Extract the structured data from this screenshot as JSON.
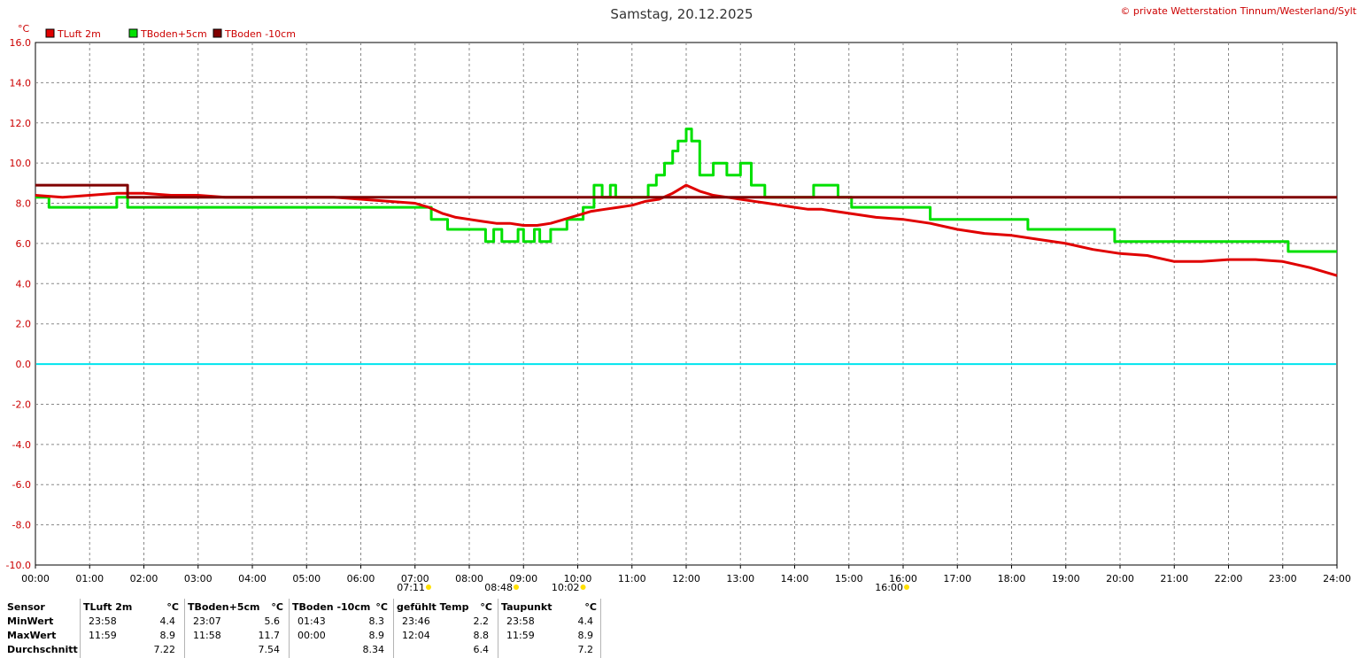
{
  "title": "Samstag, 20.12.2025",
  "copyright": "© private Wetterstation Tinnum/Westerland/Sylt",
  "chart_data": {
    "type": "line",
    "unit_label": "°C",
    "ylim": [
      -10,
      16
    ],
    "yticks": [
      "16.0",
      "14.0",
      "12.0",
      "10.0",
      "8.0",
      "6.0",
      "4.0",
      "2.0",
      "0.0",
      "-2.0",
      "-4.0",
      "-6.0",
      "-8.0",
      "-10.0"
    ],
    "xlim": [
      0,
      24
    ],
    "xticks": [
      "00:00",
      "01:00",
      "02:00",
      "03:00",
      "04:00",
      "05:00",
      "06:00",
      "07:00",
      "08:00",
      "09:00",
      "10:00",
      "11:00",
      "12:00",
      "13:00",
      "14:00",
      "15:00",
      "16:00",
      "17:00",
      "18:00",
      "19:00",
      "20:00",
      "21:00",
      "22:00",
      "23:00",
      "24:00"
    ],
    "grid": true,
    "legend_position": "top-left",
    "zero_line_color": "#00e5ee",
    "series": [
      {
        "name": "TLuft 2m",
        "color": "#e00000",
        "x": [
          0,
          0.5,
          1,
          1.5,
          2,
          2.5,
          3,
          3.5,
          4,
          4.5,
          5,
          5.5,
          6,
          6.5,
          7,
          7.25,
          7.5,
          7.75,
          8,
          8.25,
          8.5,
          8.75,
          9,
          9.25,
          9.5,
          9.75,
          10,
          10.25,
          10.5,
          10.75,
          11,
          11.25,
          11.5,
          11.75,
          12,
          12.25,
          12.5,
          12.75,
          13,
          13.25,
          13.5,
          13.75,
          14,
          14.25,
          14.5,
          14.75,
          15,
          15.5,
          16,
          16.5,
          17,
          17.5,
          18,
          18.5,
          19,
          19.5,
          20,
          20.5,
          21,
          21.5,
          22,
          22.5,
          23,
          23.5,
          24
        ],
        "y": [
          8.4,
          8.3,
          8.4,
          8.5,
          8.5,
          8.4,
          8.4,
          8.3,
          8.3,
          8.3,
          8.3,
          8.3,
          8.2,
          8.1,
          8.0,
          7.8,
          7.5,
          7.3,
          7.2,
          7.1,
          7.0,
          7.0,
          6.9,
          6.9,
          7.0,
          7.2,
          7.4,
          7.6,
          7.7,
          7.8,
          7.9,
          8.1,
          8.2,
          8.5,
          8.9,
          8.6,
          8.4,
          8.3,
          8.2,
          8.1,
          8.0,
          7.9,
          7.8,
          7.7,
          7.7,
          7.6,
          7.5,
          7.3,
          7.2,
          7.0,
          6.7,
          6.5,
          6.4,
          6.2,
          6.0,
          5.7,
          5.5,
          5.4,
          5.1,
          5.1,
          5.2,
          5.2,
          5.1,
          4.8,
          4.4
        ]
      },
      {
        "name": "TBoden+5cm",
        "color": "#00e000",
        "x": [
          0,
          0.25,
          0.25,
          1.5,
          1.5,
          1.7,
          1.7,
          7.3,
          7.3,
          7.6,
          7.6,
          8.3,
          8.3,
          8.45,
          8.45,
          8.6,
          8.6,
          8.9,
          8.9,
          9,
          9,
          9.2,
          9.2,
          9.3,
          9.3,
          9.5,
          9.5,
          9.8,
          9.8,
          10.1,
          10.1,
          10.3,
          10.3,
          10.45,
          10.45,
          10.6,
          10.6,
          10.7,
          10.7,
          11.3,
          11.3,
          11.45,
          11.45,
          11.6,
          11.6,
          11.75,
          11.75,
          11.85,
          11.85,
          12,
          12,
          12.1,
          12.1,
          12.25,
          12.25,
          12.5,
          12.5,
          12.75,
          12.75,
          13,
          13,
          13.2,
          13.2,
          13.45,
          13.45,
          14.35,
          14.35,
          14.8,
          14.8,
          15.05,
          15.05,
          16.5,
          16.5,
          18.3,
          18.3,
          19.9,
          19.9,
          23.1,
          23.1,
          24
        ],
        "y": [
          8.3,
          8.3,
          7.8,
          7.8,
          8.3,
          8.3,
          7.8,
          7.8,
          7.2,
          7.2,
          6.7,
          6.7,
          6.1,
          6.1,
          6.7,
          6.7,
          6.1,
          6.1,
          6.7,
          6.7,
          6.1,
          6.1,
          6.7,
          6.7,
          6.1,
          6.1,
          6.7,
          6.7,
          7.2,
          7.2,
          7.8,
          7.8,
          8.9,
          8.9,
          8.3,
          8.3,
          8.9,
          8.9,
          8.3,
          8.3,
          8.9,
          8.9,
          9.4,
          9.4,
          10.0,
          10.0,
          10.6,
          10.6,
          11.1,
          11.1,
          11.7,
          11.7,
          11.1,
          11.1,
          9.4,
          9.4,
          10.0,
          10.0,
          9.4,
          9.4,
          10.0,
          10.0,
          8.9,
          8.9,
          8.3,
          8.3,
          8.9,
          8.9,
          8.3,
          8.3,
          7.8,
          7.8,
          7.2,
          7.2,
          6.7,
          6.7,
          6.1,
          6.1,
          5.6,
          5.6
        ]
      },
      {
        "name": "TBoden -10cm",
        "color": "#800000",
        "x": [
          0,
          1.7,
          1.7,
          24
        ],
        "y": [
          8.9,
          8.9,
          8.3,
          8.3
        ]
      }
    ],
    "sun_markers": {
      "left": [
        "07:11",
        "08:48",
        "10:02"
      ],
      "right": [
        "16:00"
      ]
    }
  },
  "stats": {
    "row_labels": [
      "Sensor",
      "MinWert",
      "MaxWert",
      "Durchschnitt"
    ],
    "columns": [
      {
        "header": "TLuft 2m",
        "unit": "°C",
        "min_time": "23:58",
        "min": "4.4",
        "max_time": "11:59",
        "max": "8.9",
        "avg": "7.22"
      },
      {
        "header": "TBoden+5cm",
        "unit": "°C",
        "min_time": "23:07",
        "min": "5.6",
        "max_time": "11:58",
        "max": "11.7",
        "avg": "7.54"
      },
      {
        "header": "TBoden -10cm",
        "unit": "°C",
        "min_time": "01:43",
        "min": "8.3",
        "max_time": "00:00",
        "max": "8.9",
        "avg": "8.34"
      },
      {
        "header": "gefühlt Temp",
        "unit": "°C",
        "min_time": "23:46",
        "min": "2.2",
        "max_time": "12:04",
        "max": "8.8",
        "avg": "6.4"
      },
      {
        "header": "Taupunkt",
        "unit": "°C",
        "min_time": "23:58",
        "min": "4.4",
        "max_time": "11:59",
        "max": "8.9",
        "avg": "7.2"
      }
    ]
  }
}
